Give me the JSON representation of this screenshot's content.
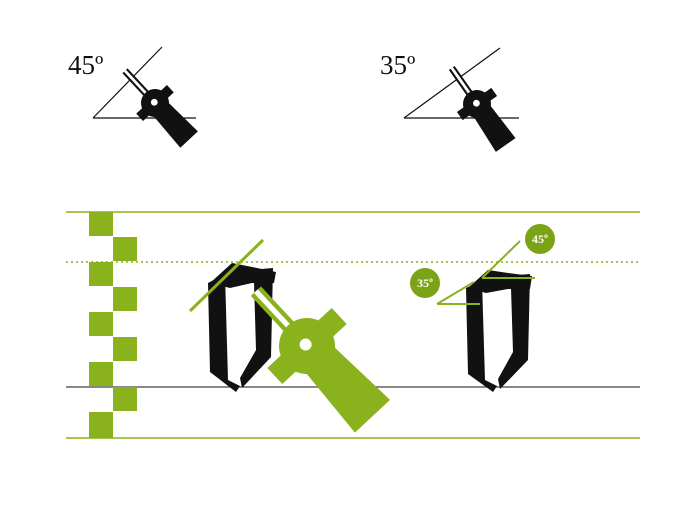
{
  "labels": {
    "angle_45": "45º",
    "angle_35": "35º",
    "badge_45": "45º",
    "badge_35": "35º"
  },
  "colors": {
    "green": "#8ab21d",
    "green_dark": "#7aa416",
    "ink": "#111111",
    "pen_cut": "#ffffff"
  },
  "icons": {
    "pen_nib": "broad-edge-pen-nib-icon",
    "letter": "blackletter-o-stroke"
  }
}
